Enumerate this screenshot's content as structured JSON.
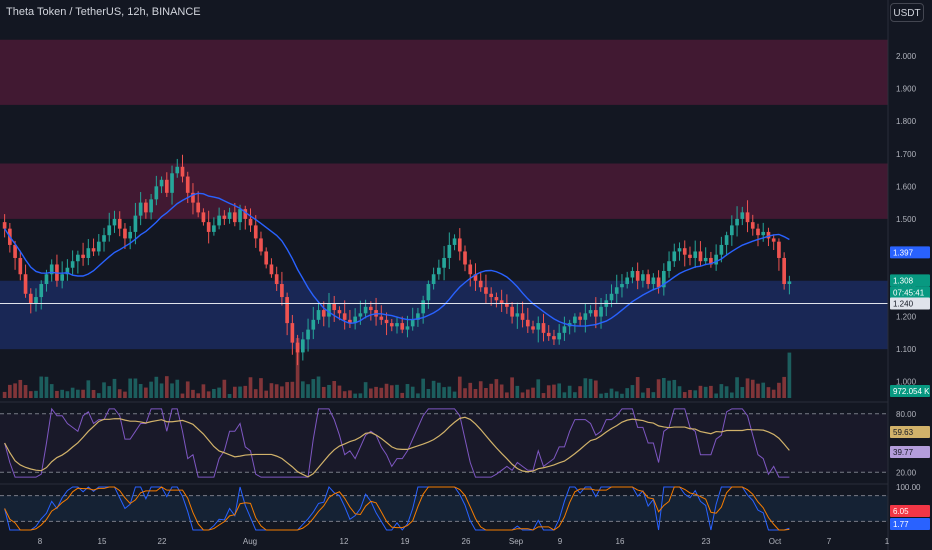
{
  "header": {
    "title": "Theta Token / TetherUS, 12h, BINANCE",
    "currency": "USDT"
  },
  "colors": {
    "background": "#131722",
    "up": "#26a69a",
    "down": "#ef5350",
    "ma": "#2962ff",
    "resistance_zone": "#4a1a35",
    "support_zone": "#1b2a5e",
    "rsi": "#7e57c2",
    "rsi_ma": "#d1b26a",
    "stoch_k": "#2962ff",
    "stoch_d": "#f57c00"
  },
  "badges": {
    "ma_value": "1.397",
    "last_price": "1.308",
    "countdown": "07:45:41",
    "level_line": "1.240",
    "volume": "972.054 K",
    "rsi_ma": "59.63",
    "rsi": "39.77",
    "stoch_d": "6.05",
    "stoch_k": "1.77"
  },
  "chart_data": [
    {
      "type": "candlestick",
      "x_labels": [
        "8",
        "15",
        "22",
        "Aug",
        "12",
        "19",
        "26",
        "Sep",
        "9",
        "16",
        "23",
        "Oct",
        "7",
        "1"
      ],
      "y_ticks": [
        "2.000",
        "1.900",
        "1.800",
        "1.700",
        "1.600",
        "1.500",
        "1.400",
        "1.300",
        "1.200",
        "1.100",
        "1.000"
      ],
      "ylim": [
        0.95,
        2.08
      ],
      "zones": [
        {
          "from": 1.85,
          "to": 2.05
        },
        {
          "from": 1.5,
          "to": 1.67
        },
        {
          "from": 1.1,
          "to": 1.31
        }
      ],
      "horizontal_line": 1.24,
      "close": [
        1.47,
        1.42,
        1.38,
        1.33,
        1.27,
        1.24,
        1.26,
        1.3,
        1.33,
        1.36,
        1.31,
        1.33,
        1.35,
        1.37,
        1.39,
        1.38,
        1.41,
        1.4,
        1.43,
        1.45,
        1.48,
        1.5,
        1.47,
        1.44,
        1.46,
        1.51,
        1.55,
        1.52,
        1.56,
        1.6,
        1.62,
        1.58,
        1.64,
        1.66,
        1.63,
        1.58,
        1.55,
        1.52,
        1.49,
        1.46,
        1.48,
        1.51,
        1.5,
        1.52,
        1.49,
        1.53,
        1.5,
        1.48,
        1.44,
        1.4,
        1.36,
        1.33,
        1.3,
        1.26,
        1.18,
        1.12,
        1.09,
        1.13,
        1.16,
        1.19,
        1.22,
        1.2,
        1.24,
        1.22,
        1.21,
        1.19,
        1.18,
        1.2,
        1.21,
        1.23,
        1.22,
        1.2,
        1.19,
        1.18,
        1.17,
        1.18,
        1.16,
        1.17,
        1.19,
        1.21,
        1.25,
        1.3,
        1.33,
        1.35,
        1.38,
        1.42,
        1.44,
        1.4,
        1.36,
        1.33,
        1.31,
        1.29,
        1.27,
        1.26,
        1.25,
        1.24,
        1.23,
        1.2,
        1.21,
        1.19,
        1.17,
        1.16,
        1.18,
        1.15,
        1.14,
        1.13,
        1.15,
        1.17,
        1.18,
        1.2,
        1.19,
        1.21,
        1.22,
        1.2,
        1.23,
        1.25,
        1.27,
        1.29,
        1.3,
        1.32,
        1.34,
        1.31,
        1.33,
        1.3,
        1.32,
        1.29,
        1.34,
        1.37,
        1.4,
        1.41,
        1.39,
        1.38,
        1.4,
        1.37,
        1.38,
        1.36,
        1.39,
        1.42,
        1.45,
        1.48,
        1.5,
        1.52,
        1.49,
        1.47,
        1.45,
        1.46,
        1.44,
        1.43,
        1.38,
        1.3,
        1.308
      ],
      "ma_last": 1.397,
      "series": [
        {
          "name": "Volume",
          "last": 972054
        }
      ]
    },
    {
      "type": "line",
      "y_ticks": [
        "80.00",
        "20.00"
      ],
      "ylim": [
        10,
        90
      ],
      "series": [
        {
          "name": "RSI",
          "last": 39.77
        },
        {
          "name": "RSI MA",
          "last": 59.63
        }
      ]
    },
    {
      "type": "line",
      "y_ticks": [
        "100.00"
      ],
      "ylim": [
        0,
        100
      ],
      "series": [
        {
          "name": "Stoch %K",
          "last": 1.77
        },
        {
          "name": "Stoch %D",
          "last": 6.05
        }
      ]
    }
  ]
}
